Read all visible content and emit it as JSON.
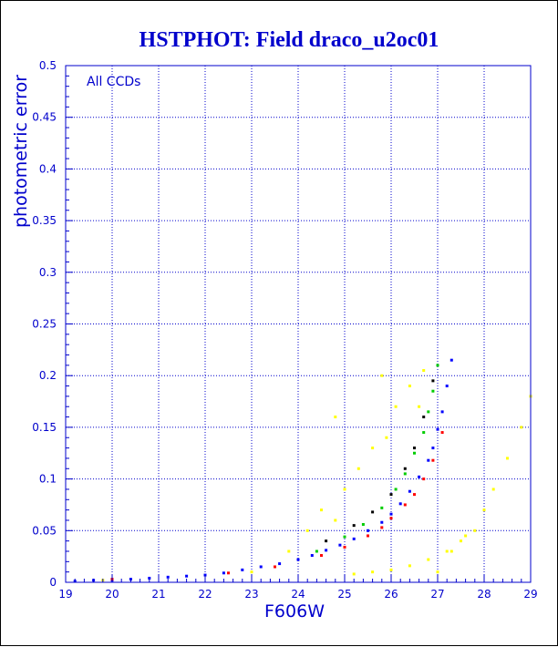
{
  "window": {
    "title": "HSTPHOT: Field draco_u2oc01"
  },
  "colors": {
    "ink": "#0000cc",
    "grid": "#0000cc",
    "background": "#ffffff"
  },
  "chart_data": {
    "type": "scatter",
    "title": "HSTPHOT: Field draco_u2oc01",
    "xlabel": "F606W",
    "ylabel": "photometric error",
    "annotation": "All CCDs",
    "xlim": [
      19,
      29
    ],
    "ylim": [
      0,
      0.5
    ],
    "x_ticks": [
      19,
      20,
      21,
      22,
      23,
      24,
      25,
      26,
      27,
      28,
      29
    ],
    "x_tick_labels": [
      "19",
      "20",
      "21",
      "22",
      "23",
      "24",
      "25",
      "26",
      "27",
      "28",
      "29"
    ],
    "y_ticks": [
      0,
      0.05,
      0.1,
      0.15,
      0.2,
      0.25,
      0.3,
      0.35,
      0.4,
      0.45,
      0.5
    ],
    "y_tick_labels": [
      "0",
      "0.05",
      "0.1",
      "0.15",
      "0.2",
      "0.25",
      "0.3",
      "0.35",
      "0.4",
      "0.45",
      "0.5"
    ],
    "grid": true,
    "series": [
      {
        "color": "#0000ff",
        "x": [
          19.2,
          19.6,
          20.0,
          20.4,
          20.8,
          21.2,
          21.6,
          22.0,
          22.4,
          22.8,
          23.2,
          23.6,
          24.0,
          24.3,
          24.6,
          24.9,
          25.2,
          25.5,
          25.8,
          26.0,
          26.2,
          26.4,
          26.6,
          26.8,
          26.9,
          27.0,
          27.1,
          27.2,
          27.3
        ],
        "y": [
          0.001,
          0.002,
          0.002,
          0.003,
          0.004,
          0.005,
          0.006,
          0.007,
          0.009,
          0.012,
          0.015,
          0.018,
          0.022,
          0.026,
          0.031,
          0.036,
          0.042,
          0.05,
          0.058,
          0.066,
          0.076,
          0.088,
          0.102,
          0.118,
          0.13,
          0.148,
          0.165,
          0.19,
          0.215
        ]
      },
      {
        "color": "#ff0000",
        "x": [
          20.0,
          22.5,
          23.5,
          24.5,
          25.0,
          25.5,
          25.8,
          26.0,
          26.3,
          26.5,
          26.7,
          26.9,
          27.1
        ],
        "y": [
          0.003,
          0.009,
          0.015,
          0.026,
          0.034,
          0.045,
          0.053,
          0.062,
          0.075,
          0.085,
          0.1,
          0.118,
          0.145
        ]
      },
      {
        "color": "#00cc00",
        "x": [
          24.4,
          25.0,
          25.4,
          25.8,
          26.1,
          26.3,
          26.5,
          26.7,
          26.8,
          26.9,
          27.0
        ],
        "y": [
          0.03,
          0.044,
          0.056,
          0.072,
          0.09,
          0.105,
          0.125,
          0.145,
          0.165,
          0.185,
          0.21
        ]
      },
      {
        "color": "#000000",
        "x": [
          24.6,
          25.2,
          25.6,
          26.0,
          26.3,
          26.5,
          26.7,
          26.9
        ],
        "y": [
          0.04,
          0.055,
          0.068,
          0.085,
          0.11,
          0.13,
          0.16,
          0.195
        ]
      },
      {
        "color": "#ffff00",
        "x": [
          19.8,
          23.0,
          23.8,
          24.2,
          24.5,
          24.8,
          25.0,
          25.3,
          25.6,
          25.9,
          26.1,
          26.4,
          26.7,
          27.0,
          27.3,
          27.6,
          27.8,
          28.0,
          28.2,
          25.2,
          25.6,
          26.0,
          26.4,
          26.8,
          27.2,
          27.5,
          28.5,
          28.8,
          29.0,
          24.8,
          25.8,
          26.6
        ],
        "y": [
          0.002,
          0.01,
          0.03,
          0.05,
          0.07,
          0.06,
          0.09,
          0.11,
          0.13,
          0.14,
          0.17,
          0.19,
          0.205,
          0.01,
          0.03,
          0.045,
          0.05,
          0.07,
          0.09,
          0.008,
          0.01,
          0.012,
          0.016,
          0.022,
          0.03,
          0.04,
          0.12,
          0.15,
          0.18,
          0.16,
          0.2,
          0.17
        ]
      }
    ]
  }
}
